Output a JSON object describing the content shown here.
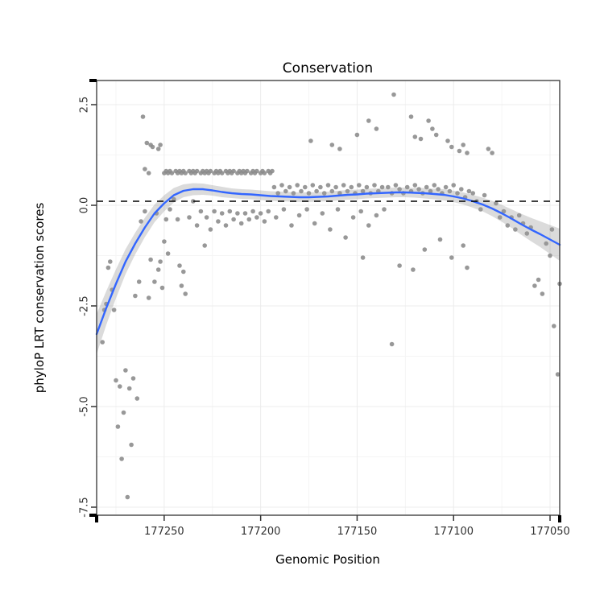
{
  "title": "Conservation",
  "chart_data": {
    "type": "scatter",
    "title": "Conservation",
    "xlabel": "Genomic Position",
    "ylabel": "phyloP LRT conservation scores",
    "x_axis": {
      "reversed": true,
      "lim": [
        177285,
        177045
      ],
      "ticks": [
        177250,
        177200,
        177150,
        177100,
        177050
      ],
      "tick_labels": [
        "177250",
        "177200",
        "177150",
        "177100",
        "177050"
      ]
    },
    "y_axis": {
      "lim": [
        -7.7,
        3.1
      ],
      "ticks": [
        2.5,
        0,
        -2.5,
        -5,
        -7.5
      ],
      "tick_labels": [
        "2.5",
        "0.0",
        "-2.5",
        "-5.0",
        "-7.5"
      ],
      "rotated_labels": true
    },
    "hline": {
      "y": 0.1,
      "linetype": "dashed",
      "color": "#000000"
    },
    "grid": {
      "show": true,
      "major_color": "#ececec",
      "minor_color": "#f5f5f5"
    },
    "colors": {
      "point": "#8a8a8a",
      "smooth_line": "#3366FF",
      "ribbon": "#999999",
      "ribbon_opacity": 0.35,
      "panel_border": "#333333",
      "background": "#ffffff"
    },
    "points": [
      [
        177282,
        -3.4
      ],
      [
        177281,
        -2.6
      ],
      [
        177280,
        -2.45
      ],
      [
        177279,
        -1.55
      ],
      [
        177278,
        -1.4
      ],
      [
        177277,
        -2.1
      ],
      [
        177276,
        -2.6
      ],
      [
        177275,
        -4.35
      ],
      [
        177274,
        -5.5
      ],
      [
        177273,
        -4.5
      ],
      [
        177272,
        -6.3
      ],
      [
        177271,
        -5.15
      ],
      [
        177270,
        -4.1
      ],
      [
        177269,
        -7.25
      ],
      [
        177268,
        -4.55
      ],
      [
        177267,
        -5.95
      ],
      [
        177266,
        -4.3
      ],
      [
        177265,
        -2.25
      ],
      [
        177264,
        -4.8
      ],
      [
        177263,
        -1.9
      ],
      [
        177261,
        2.2
      ],
      [
        177260,
        0.9
      ],
      [
        177259,
        1.55
      ],
      [
        177258,
        0.8
      ],
      [
        177257,
        1.5
      ],
      [
        177256,
        1.45
      ],
      [
        177253,
        1.4
      ],
      [
        177252,
        1.5
      ],
      [
        177262,
        -0.4
      ],
      [
        177260,
        -0.15
      ],
      [
        177258,
        -2.3
      ],
      [
        177257,
        -1.35
      ],
      [
        177255,
        -1.9
      ],
      [
        177254,
        -0.2
      ],
      [
        177253,
        -1.6
      ],
      [
        177252,
        -1.4
      ],
      [
        177251,
        -2.05
      ],
      [
        177250,
        -0.9
      ],
      [
        177249,
        -0.35
      ],
      [
        177248,
        -1.2
      ],
      [
        177250,
        0.8
      ],
      [
        177249,
        0.85
      ],
      [
        177248,
        0.8
      ],
      [
        177247,
        0.85
      ],
      [
        177246,
        0.8
      ],
      [
        177244,
        0.85
      ],
      [
        177243,
        0.8
      ],
      [
        177242,
        0.85
      ],
      [
        177241,
        0.8
      ],
      [
        177240,
        0.85
      ],
      [
        177239,
        0.8
      ],
      [
        177237,
        0.85
      ],
      [
        177236,
        0.8
      ],
      [
        177235,
        0.85
      ],
      [
        177234,
        0.8
      ],
      [
        177233,
        0.85
      ],
      [
        177231,
        0.8
      ],
      [
        177230,
        0.85
      ],
      [
        177229,
        0.8
      ],
      [
        177228,
        0.85
      ],
      [
        177227,
        0.8
      ],
      [
        177226,
        0.85
      ],
      [
        177224,
        0.8
      ],
      [
        177223,
        0.85
      ],
      [
        177222,
        0.8
      ],
      [
        177221,
        0.85
      ],
      [
        177220,
        0.8
      ],
      [
        177218,
        0.85
      ],
      [
        177217,
        0.8
      ],
      [
        177216,
        0.85
      ],
      [
        177215,
        0.8
      ],
      [
        177214,
        0.85
      ],
      [
        177212,
        0.8
      ],
      [
        177211,
        0.85
      ],
      [
        177210,
        0.8
      ],
      [
        177209,
        0.85
      ],
      [
        177208,
        0.8
      ],
      [
        177207,
        0.85
      ],
      [
        177205,
        0.8
      ],
      [
        177204,
        0.85
      ],
      [
        177203,
        0.8
      ],
      [
        177202,
        0.85
      ],
      [
        177200,
        0.8
      ],
      [
        177199,
        0.85
      ],
      [
        177198,
        0.8
      ],
      [
        177196,
        0.85
      ],
      [
        177195,
        0.8
      ],
      [
        177194,
        0.85
      ],
      [
        177247,
        -0.1
      ],
      [
        177245,
        0.15
      ],
      [
        177243,
        -0.35
      ],
      [
        177242,
        -1.5
      ],
      [
        177241,
        -2.0
      ],
      [
        177240,
        -1.65
      ],
      [
        177239,
        -2.2
      ],
      [
        177237,
        -0.3
      ],
      [
        177235,
        0.1
      ],
      [
        177233,
        -0.5
      ],
      [
        177231,
        -0.15
      ],
      [
        177229,
        -1.0
      ],
      [
        177228,
        -0.3
      ],
      [
        177226,
        -0.6
      ],
      [
        177224,
        -0.15
      ],
      [
        177222,
        -0.4
      ],
      [
        177220,
        -0.2
      ],
      [
        177218,
        -0.5
      ],
      [
        177216,
        -0.15
      ],
      [
        177214,
        -0.35
      ],
      [
        177212,
        -0.2
      ],
      [
        177210,
        -0.45
      ],
      [
        177208,
        -0.2
      ],
      [
        177206,
        -0.35
      ],
      [
        177204,
        -0.15
      ],
      [
        177202,
        -0.3
      ],
      [
        177200,
        -0.2
      ],
      [
        177198,
        -0.4
      ],
      [
        177196,
        -0.15
      ],
      [
        177193,
        0.45
      ],
      [
        177191,
        0.3
      ],
      [
        177189,
        0.5
      ],
      [
        177187,
        0.35
      ],
      [
        177185,
        0.45
      ],
      [
        177183,
        0.3
      ],
      [
        177181,
        0.5
      ],
      [
        177179,
        0.35
      ],
      [
        177177,
        0.45
      ],
      [
        177175,
        0.3
      ],
      [
        177173,
        0.5
      ],
      [
        177171,
        0.35
      ],
      [
        177169,
        0.45
      ],
      [
        177167,
        0.3
      ],
      [
        177165,
        0.5
      ],
      [
        177163,
        0.35
      ],
      [
        177161,
        0.45
      ],
      [
        177159,
        0.3
      ],
      [
        177157,
        0.5
      ],
      [
        177155,
        0.35
      ],
      [
        177153,
        0.45
      ],
      [
        177151,
        0.3
      ],
      [
        177149,
        0.5
      ],
      [
        177147,
        0.35
      ],
      [
        177145,
        0.45
      ],
      [
        177143,
        0.3
      ],
      [
        177141,
        0.5
      ],
      [
        177139,
        0.35
      ],
      [
        177137,
        0.45
      ],
      [
        177192,
        -0.3
      ],
      [
        177188,
        -0.1
      ],
      [
        177184,
        -0.5
      ],
      [
        177180,
        -0.25
      ],
      [
        177176,
        -0.1
      ],
      [
        177172,
        -0.45
      ],
      [
        177168,
        -0.2
      ],
      [
        177164,
        -0.6
      ],
      [
        177160,
        -0.1
      ],
      [
        177156,
        -0.8
      ],
      [
        177152,
        -0.3
      ],
      [
        177148,
        -0.15
      ],
      [
        177144,
        -0.5
      ],
      [
        177140,
        -0.25
      ],
      [
        177136,
        -0.1
      ],
      [
        177174,
        1.6
      ],
      [
        177163,
        1.5
      ],
      [
        177159,
        1.4
      ],
      [
        177150,
        1.75
      ],
      [
        177144,
        2.1
      ],
      [
        177140,
        1.9
      ],
      [
        177131,
        2.75
      ],
      [
        177122,
        2.2
      ],
      [
        177120,
        1.7
      ],
      [
        177147,
        -1.3
      ],
      [
        177132,
        -3.45
      ],
      [
        177128,
        -1.5
      ],
      [
        177134,
        0.45
      ],
      [
        177132,
        0.3
      ],
      [
        177130,
        0.5
      ],
      [
        177128,
        0.4
      ],
      [
        177126,
        0.3
      ],
      [
        177124,
        0.45
      ],
      [
        177122,
        0.35
      ],
      [
        177120,
        0.5
      ],
      [
        177118,
        0.4
      ],
      [
        177116,
        0.3
      ],
      [
        177114,
        0.45
      ],
      [
        177112,
        0.35
      ],
      [
        177110,
        0.5
      ],
      [
        177108,
        0.4
      ],
      [
        177106,
        0.3
      ],
      [
        177104,
        0.45
      ],
      [
        177102,
        0.35
      ],
      [
        177100,
        0.5
      ],
      [
        177098,
        0.3
      ],
      [
        177096,
        0.4
      ],
      [
        177094,
        0.2
      ],
      [
        177092,
        0.35
      ],
      [
        177117,
        1.65
      ],
      [
        177113,
        2.1
      ],
      [
        177111,
        1.9
      ],
      [
        177109,
        1.75
      ],
      [
        177103,
        1.6
      ],
      [
        177101,
        1.45
      ],
      [
        177097,
        1.35
      ],
      [
        177095,
        1.5
      ],
      [
        177093,
        1.3
      ],
      [
        177121,
        -1.6
      ],
      [
        177115,
        -1.1
      ],
      [
        177107,
        -0.85
      ],
      [
        177101,
        -1.3
      ],
      [
        177095,
        -1.0
      ],
      [
        177093,
        -1.55
      ],
      [
        177090,
        0.3
      ],
      [
        177088,
        0.1
      ],
      [
        177086,
        -0.1
      ],
      [
        177084,
        0.25
      ],
      [
        177082,
        1.4
      ],
      [
        177080,
        1.3
      ],
      [
        177078,
        0.05
      ],
      [
        177076,
        -0.3
      ],
      [
        177074,
        -0.15
      ],
      [
        177072,
        -0.5
      ],
      [
        177070,
        -0.3
      ],
      [
        177068,
        -0.6
      ],
      [
        177066,
        -0.25
      ],
      [
        177064,
        -0.45
      ],
      [
        177062,
        -0.7
      ],
      [
        177060,
        -0.55
      ],
      [
        177058,
        -2.0
      ],
      [
        177056,
        -1.85
      ],
      [
        177054,
        -2.2
      ],
      [
        177052,
        -0.95
      ],
      [
        177050,
        -1.25
      ],
      [
        177049,
        -0.6
      ],
      [
        177048,
        -3.0
      ],
      [
        177046,
        -4.2
      ],
      [
        177045,
        -1.95
      ]
    ],
    "smooth": {
      "x": [
        177285,
        177280,
        177275,
        177270,
        177265,
        177260,
        177255,
        177250,
        177245,
        177240,
        177235,
        177230,
        177225,
        177220,
        177215,
        177210,
        177205,
        177200,
        177195,
        177190,
        177185,
        177180,
        177175,
        177170,
        177165,
        177160,
        177155,
        177150,
        177145,
        177140,
        177135,
        177130,
        177125,
        177120,
        177115,
        177110,
        177105,
        177100,
        177095,
        177090,
        177085,
        177080,
        177075,
        177070,
        177065,
        177060,
        177055,
        177050,
        177045
      ],
      "y": [
        -3.2,
        -2.55,
        -1.95,
        -1.4,
        -0.95,
        -0.55,
        -0.2,
        0.05,
        0.25,
        0.36,
        0.4,
        0.4,
        0.37,
        0.33,
        0.3,
        0.28,
        0.27,
        0.25,
        0.23,
        0.22,
        0.21,
        0.2,
        0.2,
        0.21,
        0.22,
        0.24,
        0.26,
        0.27,
        0.29,
        0.3,
        0.31,
        0.32,
        0.32,
        0.31,
        0.3,
        0.28,
        0.26,
        0.22,
        0.17,
        0.1,
        0.02,
        -0.08,
        -0.2,
        -0.33,
        -0.47,
        -0.6,
        -0.72,
        -0.85,
        -0.98
      ],
      "ribbon_halfwidth": [
        0.5,
        0.42,
        0.36,
        0.31,
        0.27,
        0.24,
        0.22,
        0.2,
        0.18,
        0.16,
        0.15,
        0.14,
        0.13,
        0.13,
        0.12,
        0.12,
        0.12,
        0.12,
        0.12,
        0.12,
        0.12,
        0.12,
        0.12,
        0.12,
        0.12,
        0.12,
        0.12,
        0.12,
        0.12,
        0.12,
        0.12,
        0.12,
        0.12,
        0.12,
        0.13,
        0.13,
        0.14,
        0.14,
        0.15,
        0.16,
        0.17,
        0.19,
        0.21,
        0.23,
        0.26,
        0.29,
        0.32,
        0.36,
        0.4
      ]
    }
  }
}
